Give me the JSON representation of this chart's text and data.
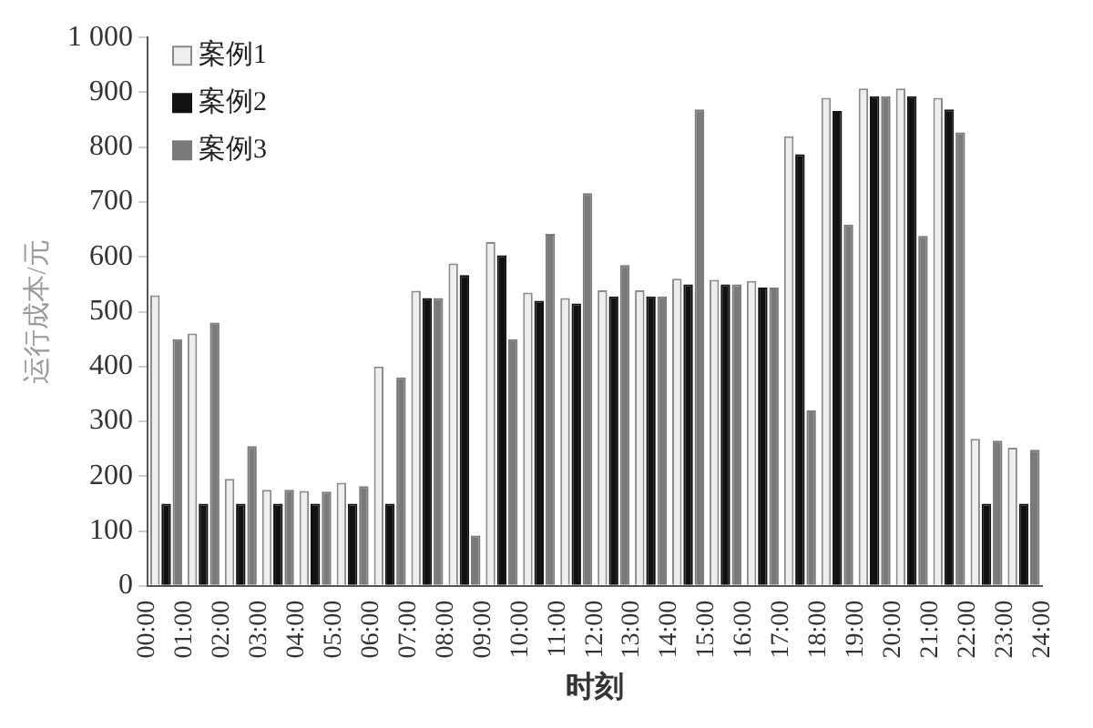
{
  "chart_data": {
    "type": "bar",
    "xlabel": "时刻",
    "ylabel": "运行成本/元",
    "x": [
      0.5,
      1.5,
      2.5,
      3.5,
      4.5,
      5.5,
      6.5,
      7.5,
      8.5,
      9.5,
      10.5,
      11.5,
      12.5,
      13.5,
      14.5,
      15.5,
      16.5,
      17.5,
      18.5,
      19.5,
      20.5,
      21.5,
      22.5,
      23.5
    ],
    "xlim": [
      0,
      24
    ],
    "xticks": [
      {
        "value": 0,
        "label": "00:00"
      },
      {
        "value": 1,
        "label": "01:00"
      },
      {
        "value": 2,
        "label": "02:00"
      },
      {
        "value": 3,
        "label": "03:00"
      },
      {
        "value": 4,
        "label": "04:00"
      },
      {
        "value": 5,
        "label": "05:00"
      },
      {
        "value": 6,
        "label": "06:00"
      },
      {
        "value": 7,
        "label": "07:00"
      },
      {
        "value": 8,
        "label": "08:00"
      },
      {
        "value": 9,
        "label": "09:00"
      },
      {
        "value": 10,
        "label": "10:00"
      },
      {
        "value": 11,
        "label": "11:00"
      },
      {
        "value": 12,
        "label": "12:00"
      },
      {
        "value": 13,
        "label": "13:00"
      },
      {
        "value": 14,
        "label": "14:00"
      },
      {
        "value": 15,
        "label": "15:00"
      },
      {
        "value": 16,
        "label": "16:00"
      },
      {
        "value": 17,
        "label": "17:00"
      },
      {
        "value": 18,
        "label": "18:00"
      },
      {
        "value": 19,
        "label": "19:00"
      },
      {
        "value": 20,
        "label": "20:00"
      },
      {
        "value": 21,
        "label": "21:00"
      },
      {
        "value": 22,
        "label": "22:00"
      },
      {
        "value": 23,
        "label": "23:00"
      },
      {
        "value": 24,
        "label": "24:00"
      }
    ],
    "ylim": [
      0,
      1000
    ],
    "yticks": [
      0,
      100,
      200,
      300,
      400,
      500,
      600,
      700,
      800,
      900,
      {
        "value": 1000,
        "label": "1 000"
      }
    ],
    "series": [
      {
        "name": "案例1",
        "color": "#eeeeee",
        "values": [
          530,
          460,
          195,
          175,
          173,
          188,
          400,
          538,
          588,
          627,
          535,
          525,
          539,
          539,
          560,
          558,
          556,
          820,
          890,
          907,
          907,
          890,
          268,
          252
        ]
      },
      {
        "name": "案例2",
        "color": "#111111",
        "values": [
          150,
          150,
          150,
          150,
          150,
          150,
          150,
          525,
          567,
          603,
          520,
          515,
          528,
          528,
          550,
          550,
          544,
          787,
          866,
          893,
          893,
          869,
          150,
          150
        ]
      },
      {
        "name": "案例3",
        "color": "#7a7a7a",
        "values": [
          450,
          480,
          255,
          175,
          172,
          182,
          380,
          525,
          92,
          450,
          642,
          716,
          585,
          528,
          869,
          550,
          544,
          320,
          659,
          893,
          638,
          827,
          265,
          248
        ]
      }
    ],
    "grid": false,
    "legend": "top left"
  }
}
